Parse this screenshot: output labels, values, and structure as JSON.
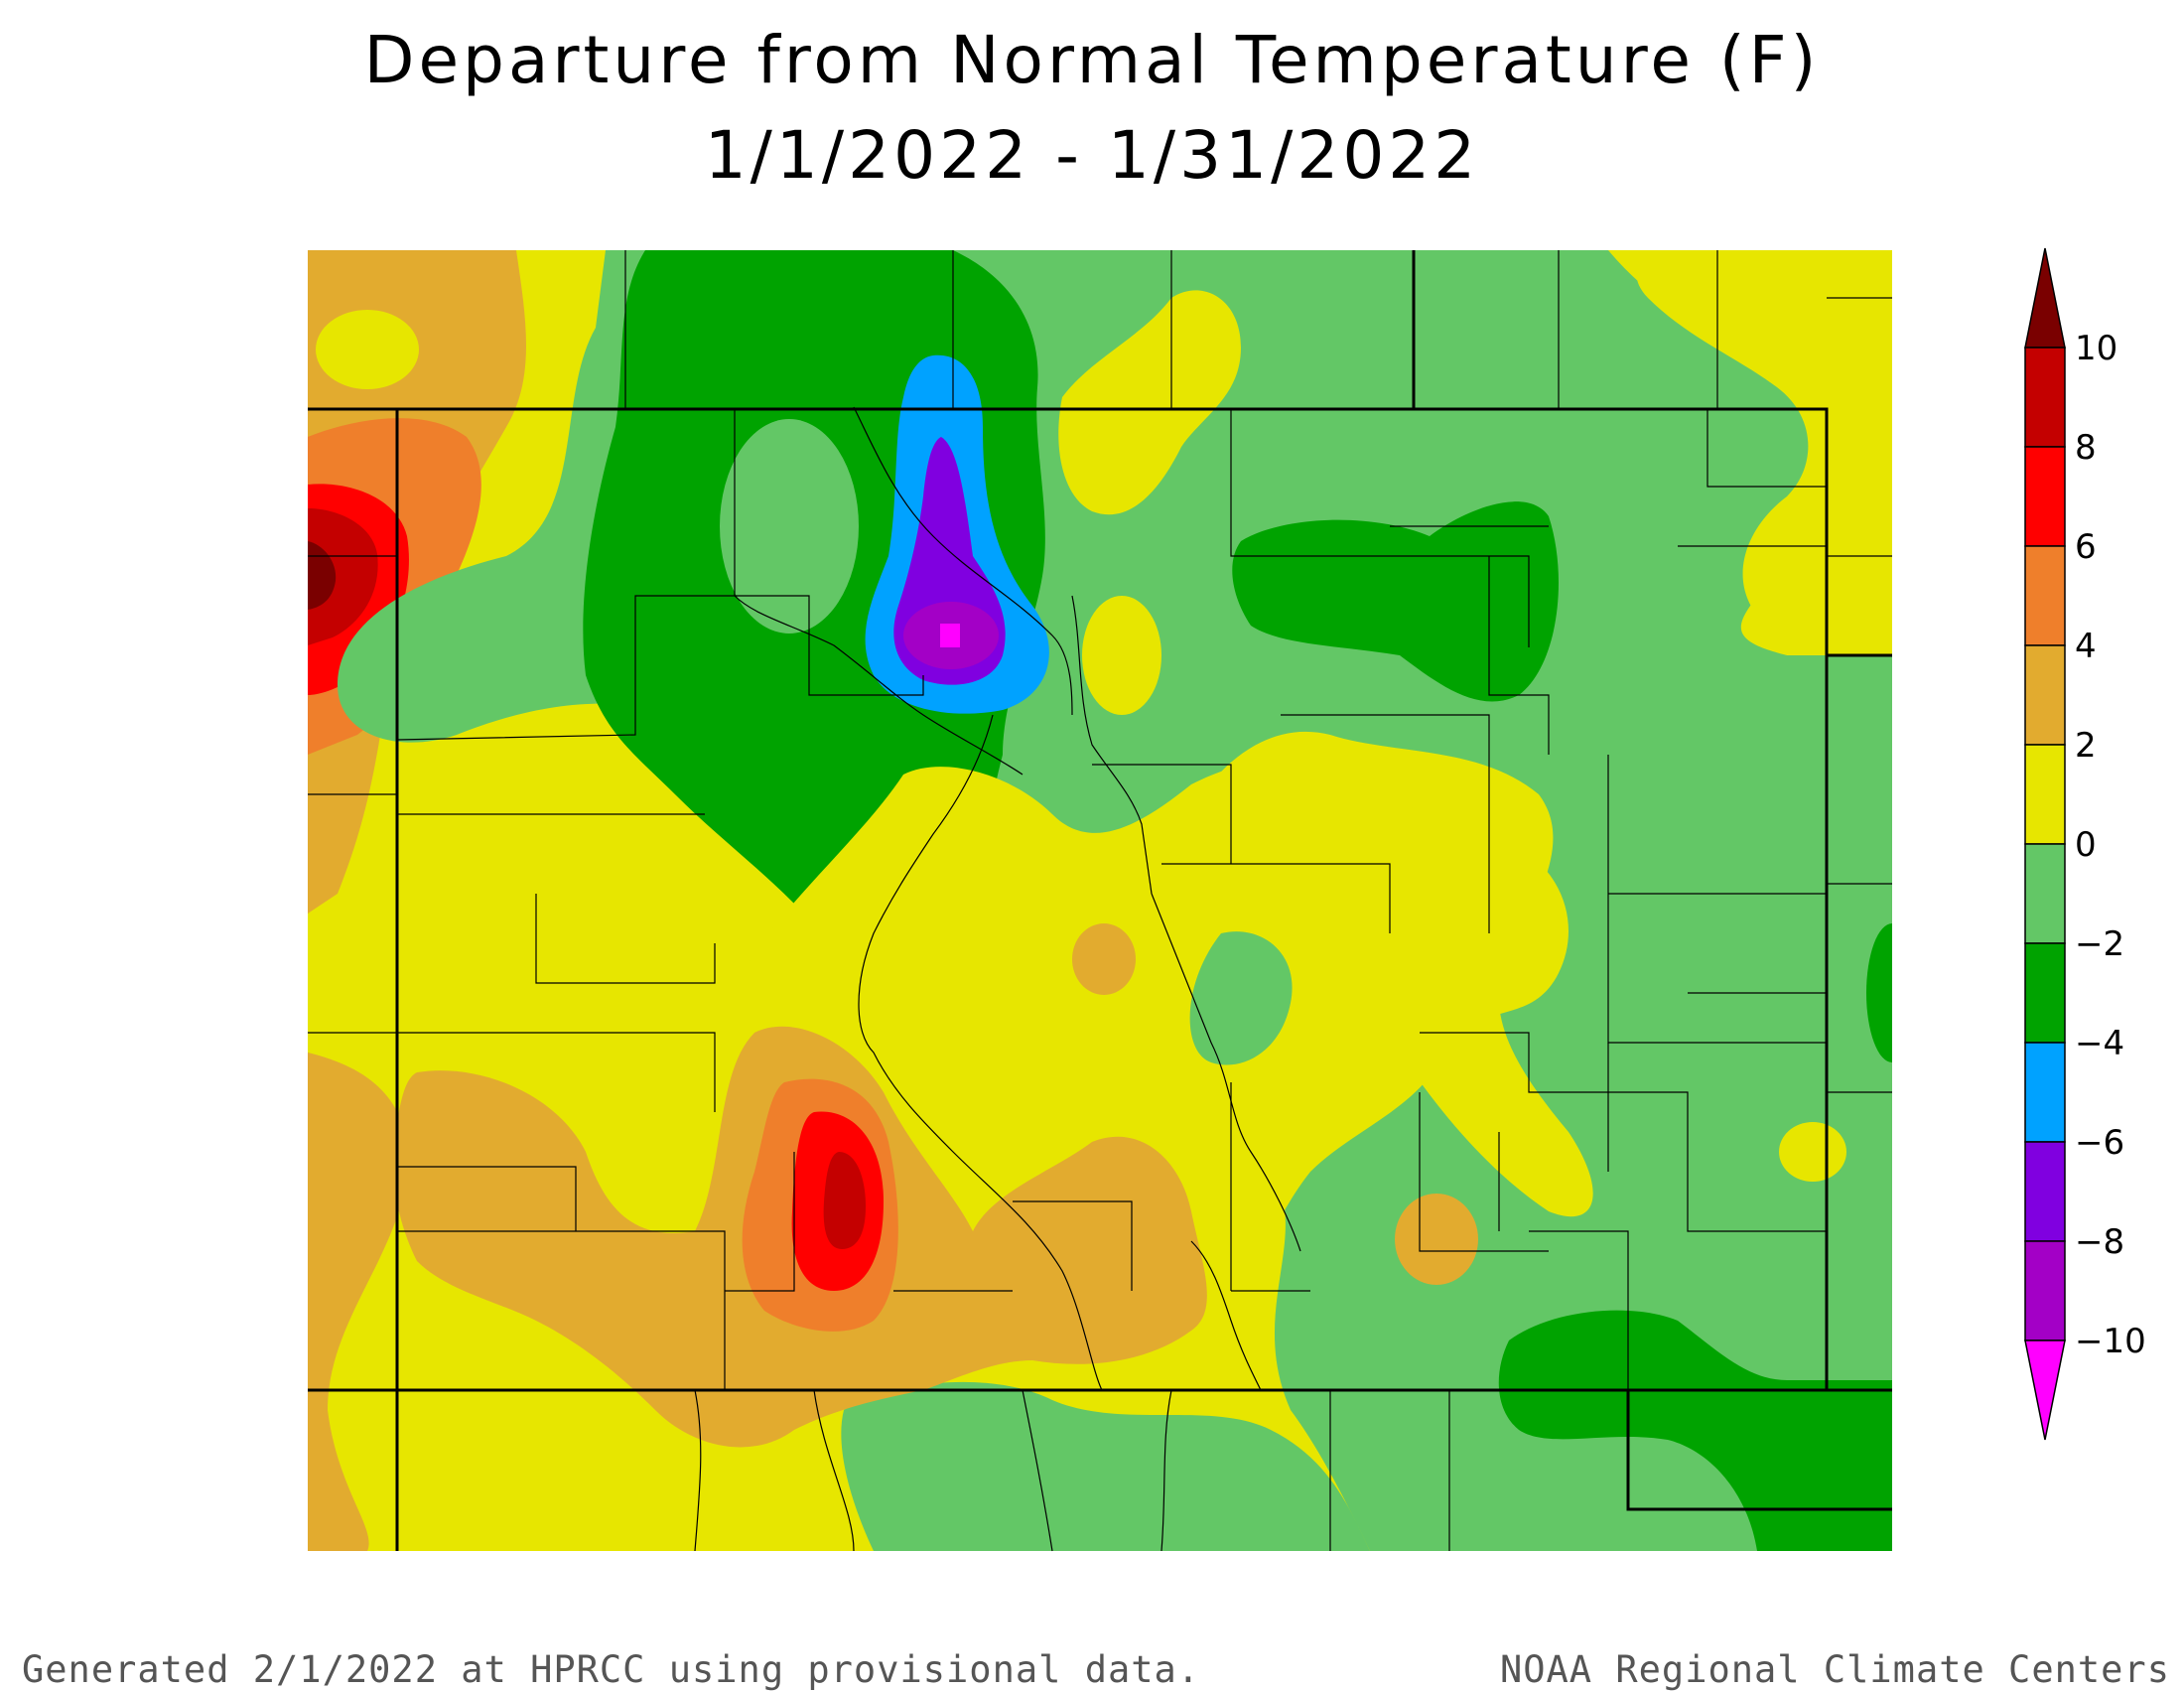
{
  "title": "Departure from Normal Temperature (F)",
  "subtitle": "1/1/2022 - 1/31/2022",
  "legend": {
    "ticks": [
      "10",
      "8",
      "6",
      "4",
      "2",
      "0",
      "−2",
      "−4",
      "−6",
      "−8",
      "−10"
    ],
    "bins": [
      {
        "range": ">10",
        "color": "#7a0000"
      },
      {
        "range": "8 to 10",
        "color": "#c40000"
      },
      {
        "range": "6 to 8",
        "color": "#ff0000"
      },
      {
        "range": "4 to 6",
        "color": "#ef7f2b"
      },
      {
        "range": "2 to 4",
        "color": "#e2ab2f"
      },
      {
        "range": "0 to 2",
        "color": "#e7e600"
      },
      {
        "range": "-2 to 0",
        "color": "#63c766"
      },
      {
        "range": "-4 to -2",
        "color": "#00a300"
      },
      {
        "range": "-6 to -4",
        "color": "#00a2ff"
      },
      {
        "range": "-8 to -6",
        "color": "#8000e0"
      },
      {
        "range": "-10 to -8",
        "color": "#a300c6"
      },
      {
        "range": "<-10",
        "color": "#ff00ff"
      }
    ]
  },
  "footer": {
    "left": "Generated 2/1/2022 at HPRCC using provisional data.",
    "right": "NOAA Regional Climate Centers"
  }
}
